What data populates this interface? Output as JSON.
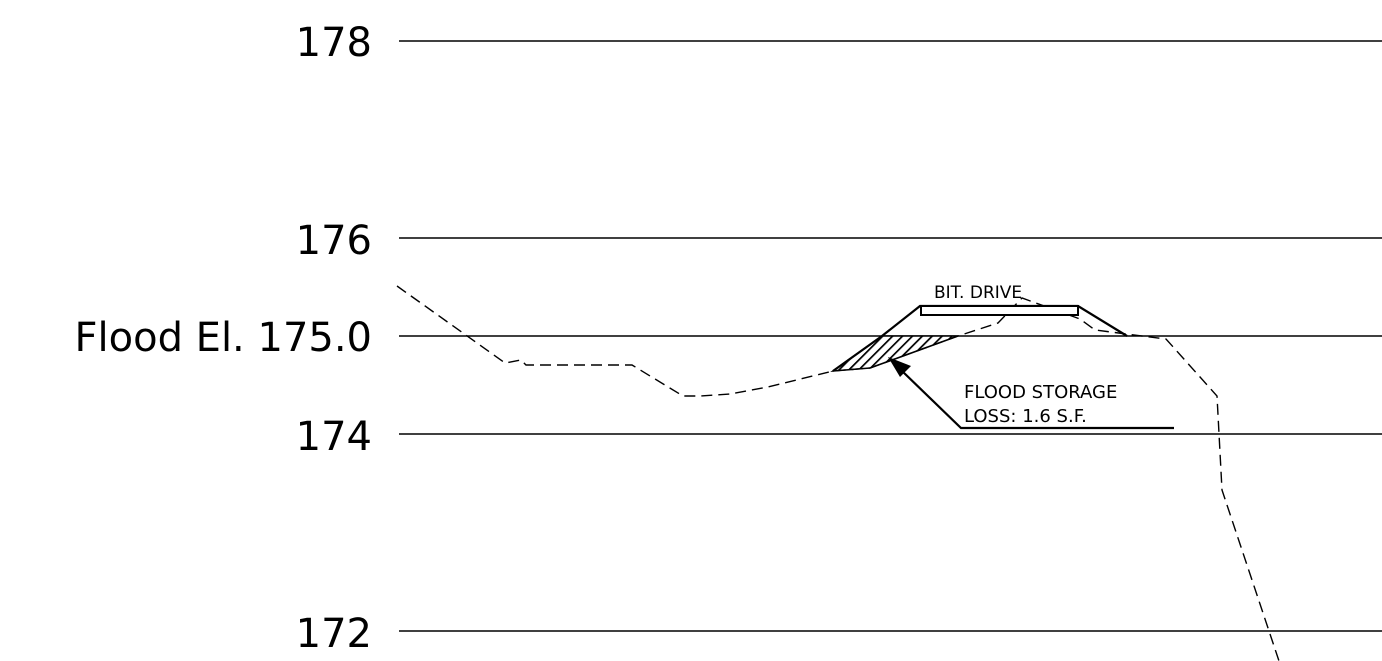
{
  "labels": {
    "elev_178": "178",
    "elev_176": "176",
    "flood_elevation": "Flood El. 175.0",
    "elev_174": "174",
    "elev_172": "172"
  },
  "annotations": {
    "drive_label": "BIT. DRIVE",
    "storage_line1": "FLOOD STORAGE",
    "storage_line2": "LOSS: 1.6 S.F."
  },
  "colors": {
    "ink": "#000000",
    "background": "#ffffff"
  },
  "icons": {
    "leader_arrowhead": "arrowhead-icon",
    "fill_pattern": "diagonal-hatch-icon"
  }
}
